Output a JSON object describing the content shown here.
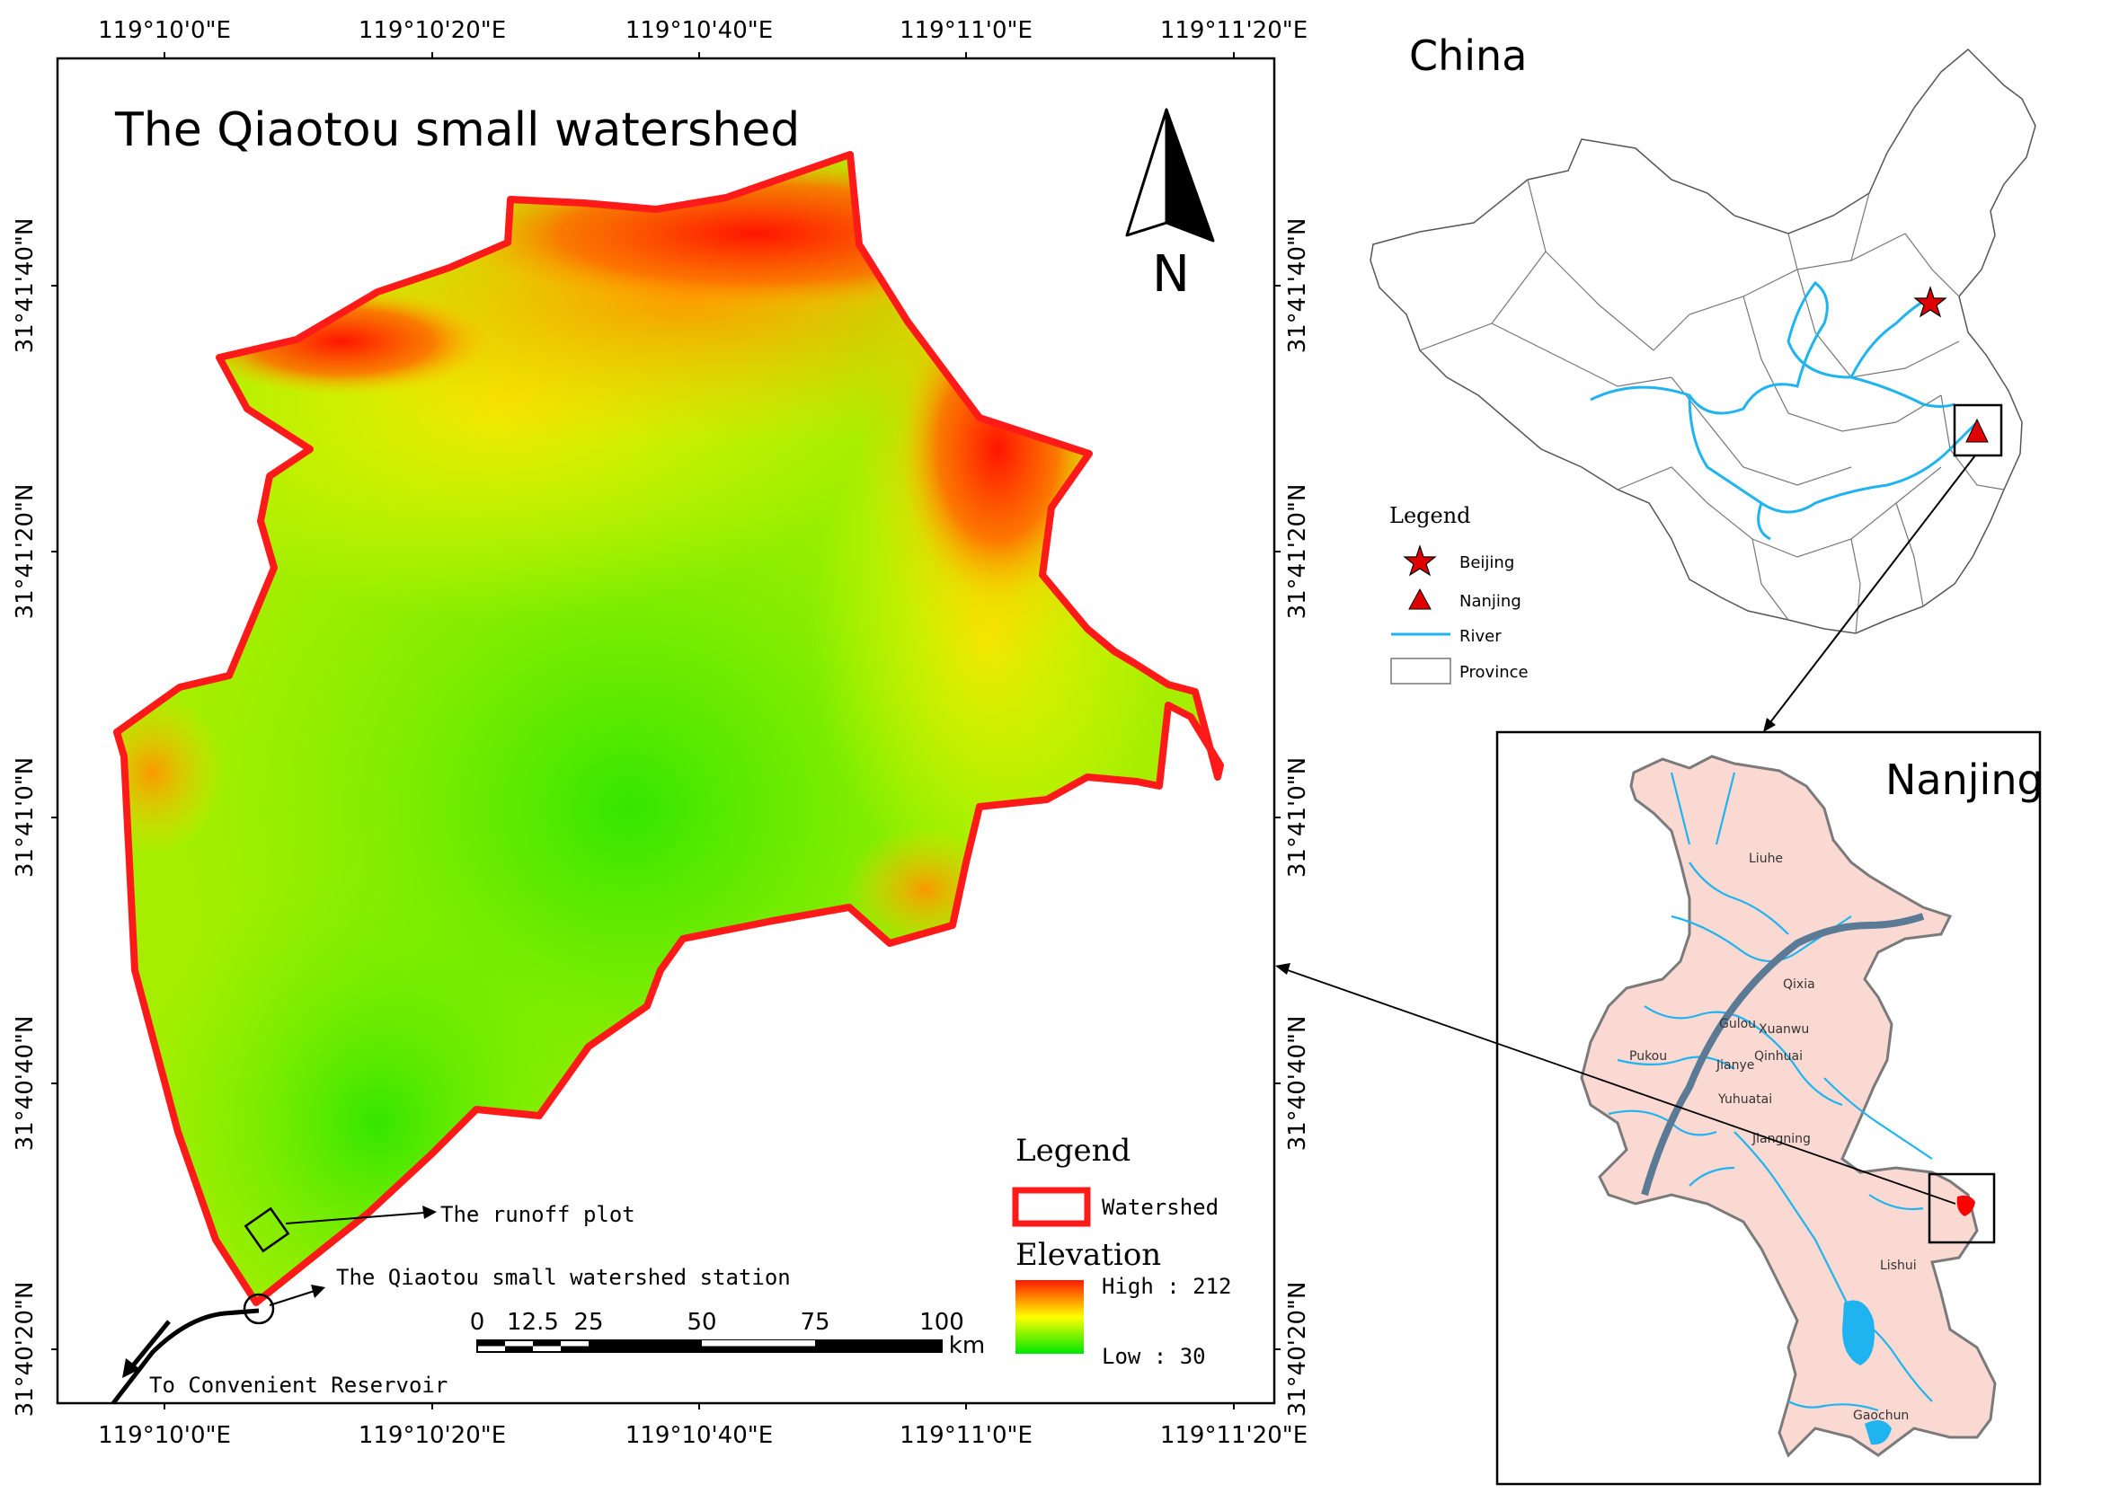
{
  "main_map": {
    "title": "The Qiaotou small watershed",
    "north_label": "N",
    "lon_ticks": [
      "119°10'0\"E",
      "119°10'20\"E",
      "119°10'40\"E",
      "119°11'0\"E",
      "119°11'20\"E"
    ],
    "lat_ticks": [
      "31°41'40\"N",
      "31°41'20\"N",
      "31°41'0\"N",
      "31°40'40\"N",
      "31°40'20\"N"
    ],
    "annotations": {
      "runoff_plot": "The runoff plot",
      "station": "The Qiaotou small watershed station",
      "reservoir": "To Convenient Reservoir"
    },
    "scale_bar": {
      "labels": [
        "0",
        "12.5",
        "25",
        "50",
        "75",
        "100"
      ],
      "unit": "km"
    },
    "legend": {
      "title": "Legend",
      "watershed_label": "Watershed",
      "elevation_title": "Elevation",
      "high_label": "High : 212",
      "low_label": "Low : 30",
      "high_value": 212,
      "low_value": 30
    },
    "colors": {
      "boundary": "#ff1a1a",
      "elev_high": "#ff0000",
      "elev_mid": "#ffff00",
      "elev_low": "#00e600"
    }
  },
  "china_map": {
    "title": "China",
    "legend": {
      "title": "Legend",
      "items": [
        {
          "icon": "star-icon",
          "label": "Beijing"
        },
        {
          "icon": "triangle-icon",
          "label": "Nanjing"
        },
        {
          "icon": "river-line-icon",
          "label": "River"
        },
        {
          "icon": "province-box-icon",
          "label": "Province"
        }
      ]
    },
    "colors": {
      "river": "#1fb4f0",
      "marker": "#e00000"
    }
  },
  "nanjing_map": {
    "title": "Nanjing",
    "district_labels": [
      "Liuhe",
      "Qixia",
      "Gulou",
      "Xuanwu",
      "Pukou",
      "Qinhuai",
      "Jianye",
      "Yuhuatai",
      "Jiangning",
      "Lishui",
      "Gaochun"
    ],
    "colors": {
      "fill": "#fbd9d3",
      "river": "#1fb4f0"
    }
  }
}
